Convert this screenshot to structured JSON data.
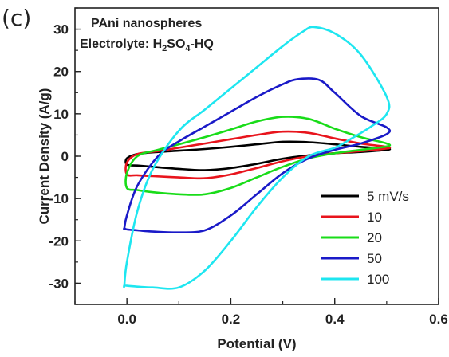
{
  "panel_label": "(c)",
  "chart_data": {
    "type": "line",
    "xlabel": "Potential (V)",
    "ylabel": "Current Density (A/g)",
    "xlim": [
      -0.1,
      0.6
    ],
    "ylim": [
      -35,
      35
    ],
    "x_ticks": [
      0.0,
      0.2,
      0.4,
      0.6
    ],
    "x_tick_labels": [
      "0.0",
      "0.2",
      "0.4",
      "0.6"
    ],
    "y_ticks": [
      -30,
      -20,
      -10,
      0,
      10,
      20,
      30
    ],
    "y_tick_labels": [
      "-30",
      "-20",
      "-10",
      "0",
      "10",
      "20",
      "30"
    ],
    "grid": false,
    "annotations": [
      "PAni nanospheres",
      "Electrolyte: H2SO4-HQ"
    ],
    "legend_position": "bottom-right",
    "series": [
      {
        "name": "5 mV/s",
        "color": "#000000",
        "x": [
          0.0,
          0.02,
          0.06,
          0.1,
          0.15,
          0.2,
          0.25,
          0.3,
          0.35,
          0.4,
          0.45,
          0.5,
          0.5,
          0.45,
          0.4,
          0.35,
          0.3,
          0.25,
          0.2,
          0.15,
          0.1,
          0.05,
          0.02,
          0.0
        ],
        "y": [
          -0.5,
          0.5,
          1.0,
          1.3,
          1.7,
          2.2,
          2.8,
          3.4,
          3.3,
          2.8,
          2.2,
          1.8,
          1.5,
          1.0,
          0.7,
          0.2,
          -0.6,
          -1.8,
          -2.8,
          -3.3,
          -3.0,
          -2.5,
          -2.2,
          -2.0
        ]
      },
      {
        "name": "10",
        "color": "#e8141c",
        "x": [
          0.0,
          0.02,
          0.06,
          0.1,
          0.15,
          0.2,
          0.25,
          0.3,
          0.35,
          0.4,
          0.45,
          0.5,
          0.5,
          0.45,
          0.4,
          0.35,
          0.3,
          0.25,
          0.2,
          0.15,
          0.1,
          0.05,
          0.02,
          0.0
        ],
        "y": [
          -1.5,
          0.5,
          1.2,
          2.0,
          3.0,
          4.0,
          5.0,
          5.8,
          5.5,
          4.2,
          3.0,
          2.2,
          1.8,
          1.2,
          0.7,
          0.0,
          -1.2,
          -2.8,
          -4.3,
          -5.2,
          -5.0,
          -4.7,
          -4.5,
          -4.3
        ]
      },
      {
        "name": "20",
        "color": "#19dc19",
        "x": [
          0.0,
          0.02,
          0.06,
          0.1,
          0.15,
          0.2,
          0.25,
          0.3,
          0.35,
          0.4,
          0.45,
          0.5,
          0.5,
          0.45,
          0.4,
          0.35,
          0.3,
          0.25,
          0.2,
          0.15,
          0.1,
          0.05,
          0.02,
          0.0
        ],
        "y": [
          -4.0,
          0.0,
          1.5,
          2.8,
          4.5,
          6.3,
          8.2,
          9.3,
          8.8,
          6.5,
          4.5,
          3.0,
          2.3,
          1.5,
          0.7,
          -0.5,
          -2.5,
          -5.0,
          -7.5,
          -9.0,
          -9.0,
          -8.5,
          -8.0,
          -7.5
        ]
      },
      {
        "name": "50",
        "color": "#1a1ac8",
        "x": [
          -0.005,
          0.0,
          0.02,
          0.06,
          0.1,
          0.15,
          0.2,
          0.25,
          0.3,
          0.33,
          0.37,
          0.4,
          0.45,
          0.5,
          0.5,
          0.45,
          0.4,
          0.35,
          0.3,
          0.25,
          0.2,
          0.15,
          0.1,
          0.05,
          0.02,
          0.0,
          -0.005
        ],
        "y": [
          -17,
          -14,
          -7,
          0,
          3.5,
          7,
          10.5,
          14,
          17,
          18.2,
          18.0,
          15,
          9.5,
          6.8,
          5.2,
          3.0,
          1.5,
          -0.5,
          -4.0,
          -9.0,
          -14.0,
          -17.5,
          -18.0,
          -17.8,
          -17.5,
          -17.3,
          -17
        ]
      },
      {
        "name": "100",
        "color": "#1ee6f0",
        "x": [
          -0.005,
          0.0,
          0.02,
          0.05,
          0.1,
          0.15,
          0.2,
          0.25,
          0.3,
          0.34,
          0.36,
          0.4,
          0.45,
          0.5,
          0.5,
          0.47,
          0.43,
          0.4,
          0.35,
          0.3,
          0.25,
          0.2,
          0.15,
          0.1,
          0.05,
          0.02,
          0.0,
          -0.005
        ],
        "y": [
          -30.5,
          -25,
          -13,
          -3,
          6,
          11,
          16,
          21,
          26,
          29.5,
          30.5,
          29,
          24,
          14,
          10,
          7,
          4,
          2,
          0,
          -5,
          -12,
          -20,
          -27,
          -31,
          -31,
          -30.8,
          -30.6,
          -30.5
        ]
      }
    ]
  }
}
